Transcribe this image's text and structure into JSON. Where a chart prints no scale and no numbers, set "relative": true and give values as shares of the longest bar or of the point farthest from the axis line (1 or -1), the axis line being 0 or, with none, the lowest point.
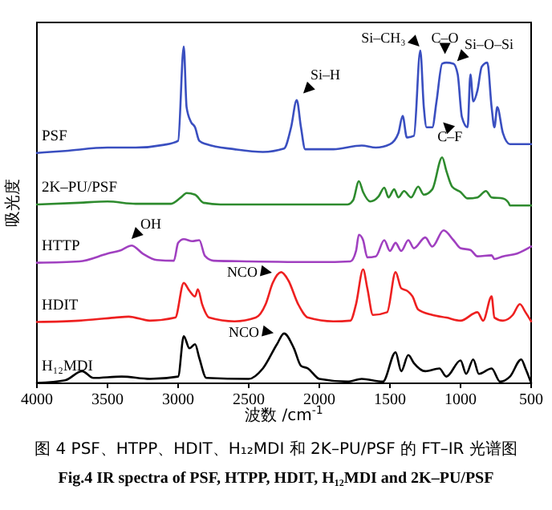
{
  "chart_data": {
    "type": "line",
    "relative": true,
    "title": "图 4 PSF、HTPP、HDIT、H₁₂MDI 和 2K–PU/PSF 的 FT–IR 光谱图",
    "subtitle": "Fig.4 IR spectra of PSF, HTPP, HDIT, H₁₂MDI and 2K–PU/PSF",
    "xlabel": "波数 /cm$^{-1}$",
    "ylabel": "吸光度",
    "xlim": [
      4000,
      500
    ],
    "xticks": [
      4000,
      3500,
      3000,
      2500,
      2000,
      1500,
      1000,
      500
    ],
    "series": [
      {
        "name": "PSF",
        "color": "#3a4fc0",
        "x": [
          4000,
          3800,
          3500,
          3300,
          3100,
          3000,
          2960,
          2940,
          2910,
          2880,
          2850,
          2800,
          2600,
          2400,
          2250,
          2200,
          2160,
          2130,
          2100,
          1900,
          1700,
          1600,
          1500,
          1440,
          1410,
          1380,
          1330,
          1285,
          1260,
          1240,
          1200,
          1170,
          1130,
          1100,
          1050,
          1020,
          990,
          950,
          930,
          910,
          880,
          850,
          810,
          780,
          760,
          740,
          700,
          650,
          550,
          500
        ],
        "values": [
          0.684,
          0.69,
          0.7,
          0.7,
          0.708,
          0.72,
          1.0,
          0.82,
          0.777,
          0.76,
          0.72,
          0.71,
          0.695,
          0.687,
          0.697,
          0.76,
          0.841,
          0.76,
          0.695,
          0.695,
          0.706,
          0.7,
          0.71,
          0.743,
          0.794,
          0.73,
          0.735,
          0.988,
          0.82,
          0.76,
          0.76,
          0.837,
          0.949,
          0.952,
          0.949,
          0.917,
          0.79,
          0.76,
          0.917,
          0.837,
          0.87,
          0.94,
          0.952,
          0.82,
          0.76,
          0.82,
          0.743,
          0.71,
          0.71,
          0.71
        ]
      },
      {
        "name": "2K–PU/PSF",
        "color": "#2e8b2e",
        "x": [
          4000,
          3700,
          3500,
          3300,
          3050,
          2980,
          2940,
          2880,
          2820,
          2700,
          2000,
          1800,
          1760,
          1720,
          1690,
          1640,
          1580,
          1540,
          1510,
          1470,
          1440,
          1400,
          1350,
          1300,
          1260,
          1200,
          1130,
          1100,
          1060,
          1000,
          950,
          880,
          820,
          780,
          700,
          660,
          650,
          500
        ],
        "values": [
          0.531,
          0.536,
          0.54,
          0.533,
          0.533,
          0.552,
          0.565,
          0.56,
          0.536,
          0.531,
          0.531,
          0.531,
          0.544,
          0.6,
          0.568,
          0.54,
          0.555,
          0.581,
          0.552,
          0.576,
          0.552,
          0.571,
          0.552,
          0.584,
          0.56,
          0.576,
          0.671,
          0.63,
          0.584,
          0.568,
          0.549,
          0.552,
          0.571,
          0.552,
          0.549,
          0.536,
          0.528,
          0.528
        ]
      },
      {
        "name": "HTTP",
        "color": "#a040c0",
        "x": [
          4000,
          3700,
          3500,
          3400,
          3330,
          3250,
          3150,
          3030,
          3000,
          2960,
          2900,
          2850,
          2810,
          2750,
          2500,
          2000,
          1780,
          1740,
          1720,
          1690,
          1660,
          1600,
          1540,
          1500,
          1460,
          1420,
          1370,
          1330,
          1250,
          1200,
          1120,
          1050,
          1000,
          930,
          880,
          780,
          760,
          700,
          600,
          500
        ],
        "values": [
          0.358,
          0.362,
          0.385,
          0.396,
          0.409,
          0.385,
          0.366,
          0.364,
          0.417,
          0.428,
          0.422,
          0.425,
          0.378,
          0.364,
          0.362,
          0.36,
          0.362,
          0.393,
          0.441,
          0.425,
          0.374,
          0.377,
          0.425,
          0.393,
          0.417,
          0.393,
          0.425,
          0.401,
          0.433,
          0.406,
          0.454,
          0.425,
          0.401,
          0.396,
          0.377,
          0.38,
          0.369,
          0.377,
          0.385,
          0.406
        ]
      },
      {
        "name": "HDIT",
        "color": "#ee2020",
        "x": [
          4000,
          3700,
          3450,
          3350,
          3200,
          3020,
          2960,
          2920,
          2880,
          2860,
          2830,
          2780,
          2600,
          2450,
          2380,
          2330,
          2270,
          2220,
          2150,
          2080,
          1900,
          1780,
          1740,
          1690,
          1660,
          1620,
          1520,
          1460,
          1420,
          1380,
          1340,
          1300,
          1200,
          1100,
          1000,
          880,
          840,
          780,
          760,
          700,
          630,
          580,
          540,
          500
        ],
        "values": [
          0.182,
          0.186,
          0.195,
          0.198,
          0.186,
          0.195,
          0.298,
          0.275,
          0.258,
          0.279,
          0.235,
          0.195,
          0.184,
          0.195,
          0.235,
          0.298,
          0.33,
          0.306,
          0.235,
          0.195,
          0.184,
          0.186,
          0.235,
          0.338,
          0.282,
          0.203,
          0.211,
          0.33,
          0.282,
          0.275,
          0.258,
          0.219,
          0.203,
          0.195,
          0.186,
          0.211,
          0.186,
          0.258,
          0.195,
          0.186,
          0.203,
          0.235,
          0.211,
          0.184
        ]
      },
      {
        "name": "H₁₂MDI",
        "color": "#000000",
        "x": [
          4000,
          3800,
          3680,
          3600,
          3400,
          3200,
          3000,
          2960,
          2920,
          2880,
          2850,
          2800,
          2500,
          2400,
          2300,
          2250,
          2180,
          2130,
          2080,
          2000,
          1800,
          1700,
          1550,
          1460,
          1420,
          1370,
          1330,
          1250,
          1150,
          1100,
          1000,
          960,
          910,
          870,
          780,
          720,
          650,
          570,
          540,
          500
        ],
        "values": [
          0.001,
          0.009,
          0.036,
          0.016,
          0.02,
          0.013,
          0.02,
          0.14,
          0.104,
          0.116,
          0.075,
          0.016,
          0.013,
          0.044,
          0.116,
          0.148,
          0.104,
          0.052,
          0.044,
          0.013,
          0.005,
          0.013,
          0.005,
          0.092,
          0.036,
          0.084,
          0.06,
          0.036,
          0.044,
          0.02,
          0.068,
          0.028,
          0.071,
          0.028,
          0.044,
          0.005,
          0.02,
          0.071,
          0.044,
          0.001
        ]
      }
    ],
    "annotations": [
      {
        "text": "Si–H",
        "x": 2130,
        "y": 0.854
      },
      {
        "text": "Si–CH₃",
        "x": 1275,
        "y": 0.993
      },
      {
        "text": "C–O",
        "x": 1110,
        "y": 0.968
      },
      {
        "text": "Si–O–Si",
        "x": 1040,
        "y": 0.95
      },
      {
        "text": "C–F",
        "x": 1140,
        "y": 0.782
      },
      {
        "text": "OH",
        "x": 3346,
        "y": 0.422
      },
      {
        "text": "NCO",
        "x": 2313,
        "y": 0.327
      },
      {
        "text": "NCO",
        "x": 2301,
        "y": 0.148
      }
    ]
  }
}
